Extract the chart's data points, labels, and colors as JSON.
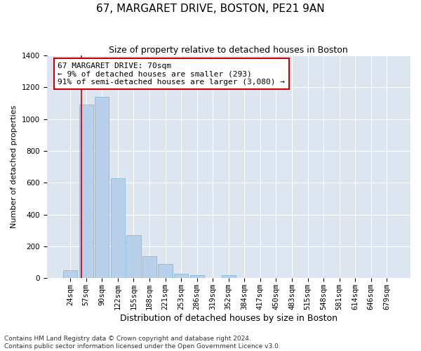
{
  "title": "67, MARGARET DRIVE, BOSTON, PE21 9AN",
  "subtitle": "Size of property relative to detached houses in Boston",
  "xlabel": "Distribution of detached houses by size in Boston",
  "ylabel": "Number of detached properties",
  "categories": [
    "24sqm",
    "57sqm",
    "90sqm",
    "122sqm",
    "155sqm",
    "188sqm",
    "221sqm",
    "253sqm",
    "286sqm",
    "319sqm",
    "352sqm",
    "384sqm",
    "417sqm",
    "450sqm",
    "483sqm",
    "515sqm",
    "548sqm",
    "581sqm",
    "614sqm",
    "646sqm",
    "679sqm"
  ],
  "values": [
    50,
    1090,
    1140,
    630,
    270,
    140,
    90,
    30,
    20,
    0,
    20,
    0,
    0,
    0,
    0,
    0,
    0,
    0,
    0,
    0,
    0
  ],
  "bar_color": "#b8d0ea",
  "bar_edge_color": "#7aaed6",
  "background_color": "#dde6f0",
  "grid_color": "#ffffff",
  "annotation_text": "67 MARGARET DRIVE: 70sqm\n← 9% of detached houses are smaller (293)\n91% of semi-detached houses are larger (3,080) →",
  "annotation_box_color": "#ffffff",
  "annotation_box_edge_color": "#cc0000",
  "vline_color": "#cc0000",
  "vline_pos": 0.72,
  "ylim": [
    0,
    1400
  ],
  "yticks": [
    0,
    200,
    400,
    600,
    800,
    1000,
    1200,
    1400
  ],
  "footnote": "Contains HM Land Registry data © Crown copyright and database right 2024.\nContains public sector information licensed under the Open Government Licence v3.0.",
  "title_fontsize": 11,
  "subtitle_fontsize": 9,
  "xlabel_fontsize": 9,
  "ylabel_fontsize": 8,
  "tick_fontsize": 7.5,
  "annot_fontsize": 8,
  "footnote_fontsize": 6.5
}
